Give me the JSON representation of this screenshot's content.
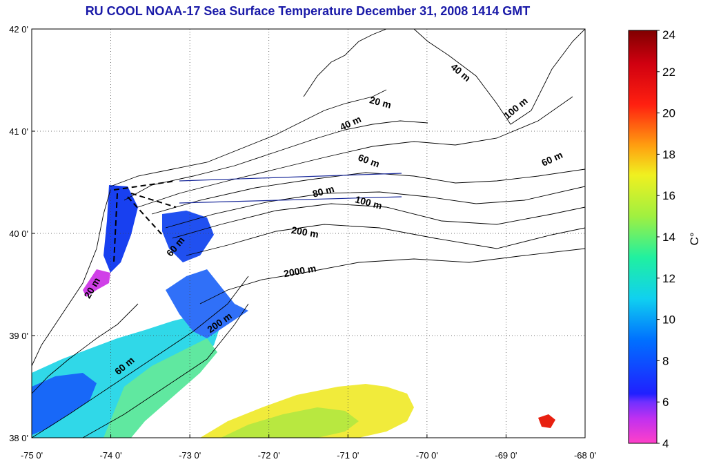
{
  "title": "RU COOL  NOAA-17 Sea Surface Temperature December 31, 2008 1414 GMT",
  "map": {
    "lon_range": [
      -75,
      -68
    ],
    "lat_range": [
      38,
      42
    ],
    "x_ticks": [
      "-75 0'",
      "-74 0'",
      "-73 0'",
      "-72 0'",
      "-71 0'",
      "-70 0'",
      "-69 0'",
      "-68 0'"
    ],
    "y_ticks": [
      "42 0'",
      "41 0'",
      "40 0'",
      "39 0'",
      "38 0'"
    ],
    "grid": "dotted"
  },
  "contour_labels": [
    {
      "text": "40 m",
      "lon": -69.6,
      "lat": 41.55,
      "angle": 40
    },
    {
      "text": "20 m",
      "lon": -70.6,
      "lat": 41.25,
      "angle": 15
    },
    {
      "text": "40 m",
      "lon": -70.95,
      "lat": 41.05,
      "angle": -25
    },
    {
      "text": "100 m",
      "lon": -68.85,
      "lat": 41.2,
      "angle": -40
    },
    {
      "text": "60 m",
      "lon": -70.75,
      "lat": 40.68,
      "angle": 20
    },
    {
      "text": "60 m",
      "lon": -68.4,
      "lat": 40.7,
      "angle": -25
    },
    {
      "text": "80 m",
      "lon": -71.3,
      "lat": 40.38,
      "angle": -15
    },
    {
      "text": "100 m",
      "lon": -70.75,
      "lat": 40.27,
      "angle": 15
    },
    {
      "text": "200 m",
      "lon": -71.55,
      "lat": 39.98,
      "angle": 10
    },
    {
      "text": "2000 m",
      "lon": -71.6,
      "lat": 39.6,
      "angle": -10
    },
    {
      "text": "60 m",
      "lon": -73.15,
      "lat": 39.85,
      "angle": -50
    },
    {
      "text": "20 m",
      "lon": -74.2,
      "lat": 39.45,
      "angle": -60
    },
    {
      "text": "200 m",
      "lon": -72.6,
      "lat": 39.1,
      "angle": -35
    },
    {
      "text": "60 m",
      "lon": -73.8,
      "lat": 38.68,
      "angle": -40
    }
  ],
  "colorbar": {
    "min": 4,
    "max": 24,
    "tick_labels": [
      "24",
      "22",
      "20",
      "18",
      "16",
      "14",
      "12",
      "10",
      "8",
      "6",
      "4"
    ],
    "unit_label": "C°"
  }
}
